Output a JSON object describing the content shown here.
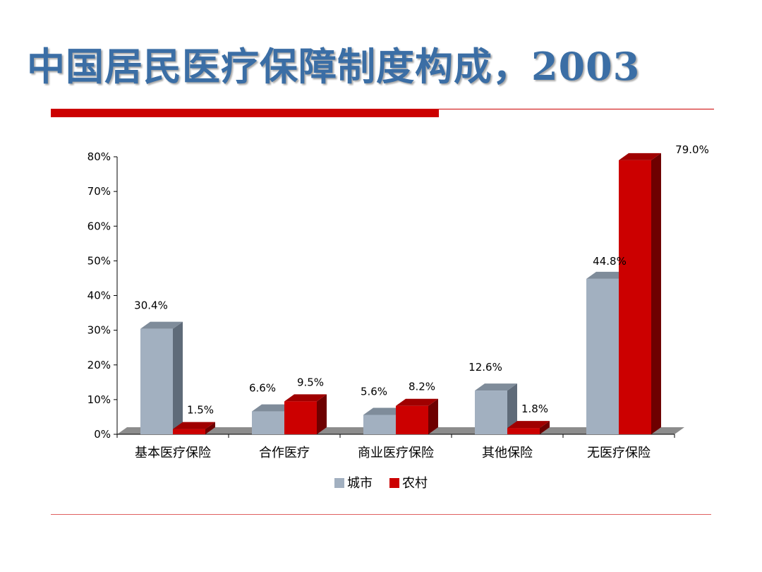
{
  "slide": {
    "title": "中国居民医疗保障制度构成，2003"
  },
  "chart_data": {
    "type": "bar",
    "categories": [
      "基本医疗保险",
      "合作医疗",
      "商业医疗保险",
      "其他保险",
      "无医疗保险"
    ],
    "series": [
      {
        "name": "城市",
        "values": [
          30.4,
          6.6,
          5.6,
          12.6,
          44.8
        ],
        "color": "#a2b0c0",
        "side_color": "#5f6b79",
        "top_color": "#7f8c9a"
      },
      {
        "name": "农村",
        "values": [
          1.5,
          9.5,
          8.2,
          1.8,
          79.0
        ],
        "color": "#cc0000",
        "side_color": "#6e0000",
        "top_color": "#a00000"
      }
    ],
    "data_labels": [
      [
        "30.4%",
        "6.6%",
        "5.6%",
        "12.6%",
        "44.8%"
      ],
      [
        "1.5%",
        "9.5%",
        "8.2%",
        "1.8%",
        "79.0%"
      ]
    ],
    "y_ticks": [
      0,
      10,
      20,
      30,
      40,
      50,
      60,
      70,
      80
    ],
    "y_tick_labels": [
      "0%",
      "10%",
      "20%",
      "30%",
      "40%",
      "50%",
      "60%",
      "70%",
      "80%"
    ],
    "ylim": [
      0,
      80
    ],
    "legend_position": "bottom",
    "grid": false,
    "style": "3d-column"
  }
}
